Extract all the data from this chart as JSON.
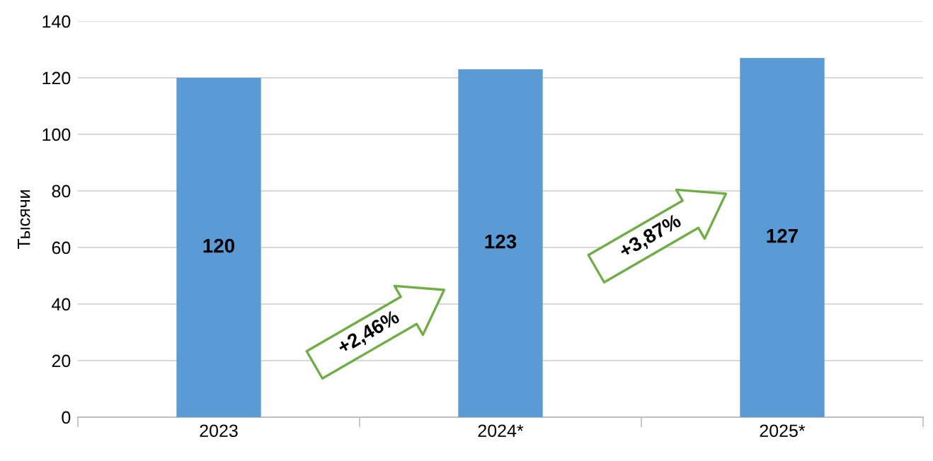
{
  "chart_data": {
    "type": "bar",
    "ylabel": "Тысячи",
    "categories": [
      "2023",
      "2024*",
      "2025*"
    ],
    "values": [
      120,
      123,
      127
    ],
    "color": "#5b9bd5",
    "data_labels": true,
    "ylim": [
      0,
      140
    ],
    "yticks": [
      0,
      20,
      40,
      60,
      80,
      100,
      120,
      140
    ],
    "grid": "y",
    "legend": false,
    "annotations": [
      "+2,46%",
      "+3,87%"
    ]
  }
}
